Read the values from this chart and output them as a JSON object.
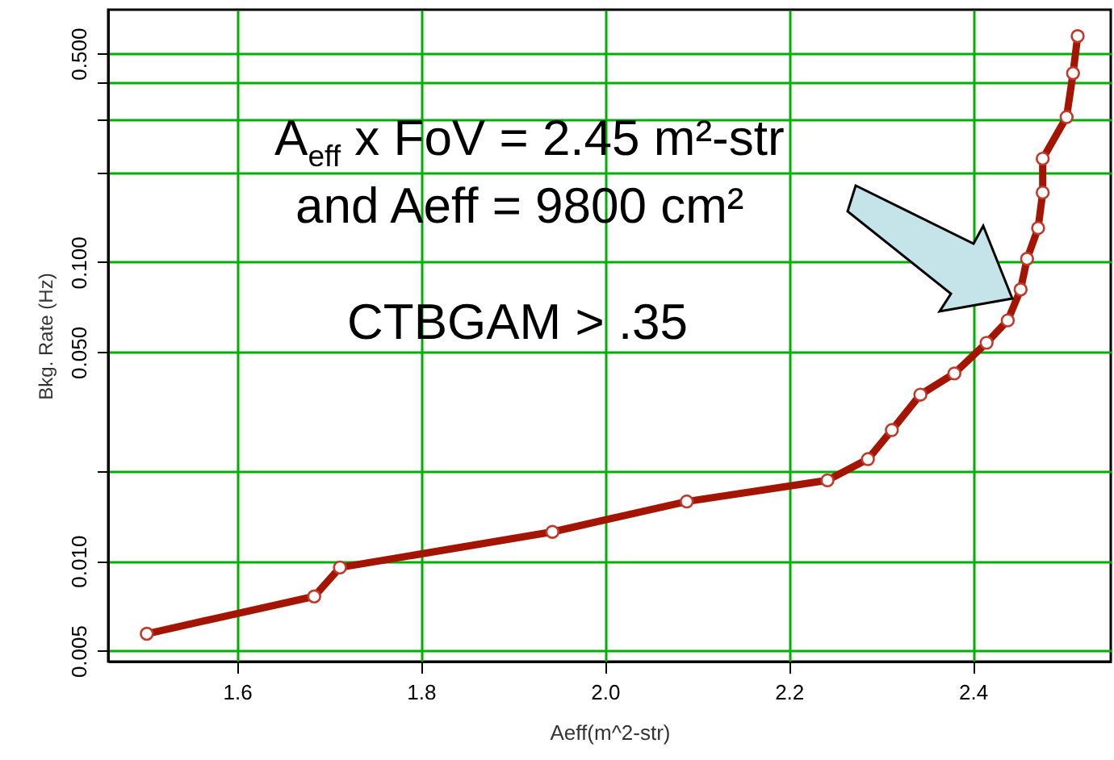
{
  "chart_data": {
    "type": "line",
    "xlabel": "Aeff(m^2-str)",
    "ylabel": "Bkg. Rate (Hz)",
    "annotations": [
      "A$_{eff}$ x FoV = 2.45 m²-str",
      "and Aeff = 9800 cm²",
      "CTBGAM > .35"
    ],
    "series": [
      {
        "color": "#a31500",
        "x": [
          1.502,
          1.684,
          1.712,
          1.943,
          2.089,
          2.242,
          2.286,
          2.312,
          2.343,
          2.38,
          2.415,
          2.438,
          2.452,
          2.459,
          2.471,
          2.476,
          2.476,
          2.502,
          2.509,
          2.514
        ],
        "values": [
          0.0057,
          0.0076,
          0.0095,
          0.0125,
          0.0158,
          0.0186,
          0.0219,
          0.0274,
          0.036,
          0.0424,
          0.0537,
          0.0638,
          0.081,
          0.1026,
          0.13,
          0.171,
          0.222,
          0.306,
          0.429,
          0.571
        ]
      }
    ],
    "xlim": [
      1.46,
      2.55
    ],
    "xticks": [
      1.6,
      1.8,
      {
        "value": 2,
        "label": "2.0"
      },
      2.2,
      2.4
    ],
    "ylim": [
      0.0046,
      0.7
    ],
    "yticks": [
      {
        "value": 0.005,
        "label": "0.005"
      },
      {
        "value": 0.01,
        "label": "0.010"
      },
      {
        "value": 0.02,
        "label": null
      },
      {
        "value": 0.05,
        "label": "0.050"
      },
      {
        "value": 0.1,
        "label": "0.100"
      },
      {
        "value": 0.2,
        "label": null
      },
      {
        "value": 0.3,
        "label": null
      },
      {
        "value": 0.4,
        "label": null
      },
      {
        "value": 0.5,
        "label": "0.500"
      }
    ],
    "log": true,
    "grid": true,
    "marker": "circle",
    "line_style": "solid"
  }
}
